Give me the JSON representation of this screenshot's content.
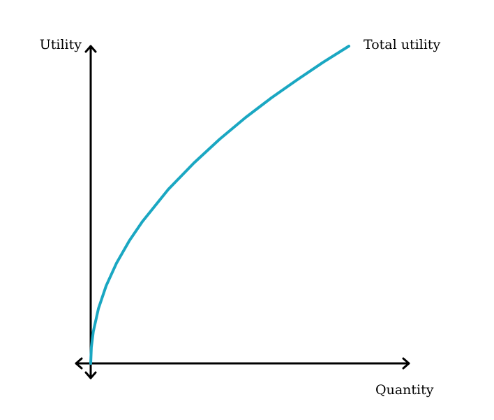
{
  "chart_data": {
    "type": "line",
    "ylabel": "Utility",
    "xlabel": "Quantity",
    "series": [
      {
        "name": "Total utility",
        "color": "#1aa7c2",
        "x": [
          0,
          0.0025,
          0.01,
          0.03,
          0.06,
          0.1,
          0.15,
          0.2,
          0.3,
          0.4,
          0.5,
          0.6,
          0.7,
          0.8,
          0.9,
          1.0
        ],
        "y": [
          0,
          0.05,
          0.1,
          0.173,
          0.245,
          0.316,
          0.387,
          0.447,
          0.548,
          0.632,
          0.707,
          0.775,
          0.837,
          0.894,
          0.949,
          1.0
        ]
      }
    ],
    "xlim": [
      0,
      1
    ],
    "ylim": [
      0,
      1
    ],
    "grid": false,
    "axis_arrows": [
      "y-up",
      "y-down",
      "x-left",
      "x-right"
    ],
    "legend": "none"
  }
}
